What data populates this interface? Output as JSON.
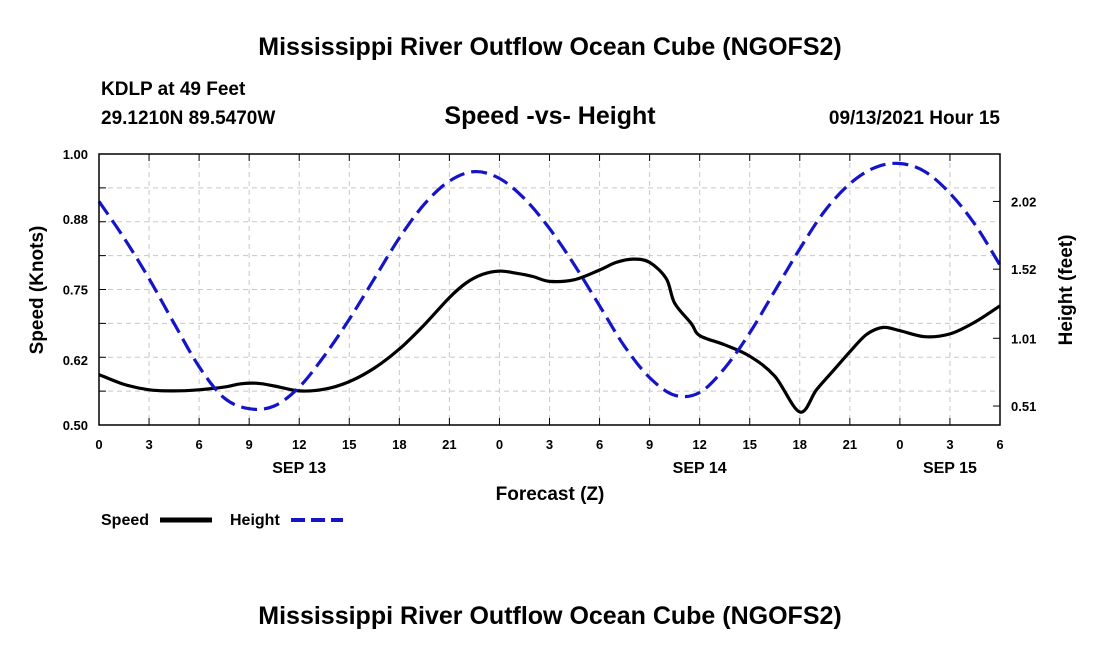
{
  "header": {
    "title": "Mississippi River Outflow Ocean Cube (NGOFS2)",
    "station": "KDLP at 49 Feet",
    "coords": "29.1210N  89.5470W",
    "timestamp": "09/13/2021 Hour 15"
  },
  "footer": {
    "title": "Mississippi River Outflow Ocean Cube (NGOFS2)"
  },
  "legend": {
    "speed_label": "Speed",
    "height_label": "Height"
  },
  "chart_data": {
    "type": "line",
    "title": "Speed -vs- Height",
    "xlabel": "Forecast (Z)",
    "ylabel": "Speed (Knots)",
    "y2label": "Height (feet)",
    "xlim": [
      0,
      54
    ],
    "ylim": [
      0.5,
      1.0
    ],
    "y2lim": [
      0.37,
      2.37
    ],
    "x_ticks": [
      0,
      3,
      6,
      9,
      12,
      15,
      18,
      21,
      24,
      27,
      30,
      33,
      36,
      39,
      42,
      45,
      48,
      51,
      54
    ],
    "x_tick_labels": [
      "0",
      "3",
      "6",
      "9",
      "12",
      "15",
      "18",
      "21",
      "0",
      "3",
      "6",
      "9",
      "12",
      "15",
      "18",
      "21",
      "0",
      "3",
      "6"
    ],
    "y_ticks": [
      0.5,
      0.62,
      0.75,
      0.88,
      1.0
    ],
    "y_tick_labels": [
      "0.50",
      "0.62",
      "0.75",
      "0.88",
      "1.00"
    ],
    "y2_ticks": [
      0.51,
      1.01,
      1.52,
      2.02
    ],
    "y2_tick_labels": [
      "0.51",
      "1.01",
      "1.52",
      "2.02"
    ],
    "date_labels": [
      {
        "x": 12,
        "label": "SEP 13"
      },
      {
        "x": 36,
        "label": "SEP 14"
      },
      {
        "x": 51,
        "label": "SEP 15"
      }
    ],
    "series": [
      {
        "name": "Speed",
        "axis": "left",
        "color": "#000000",
        "dash": "solid",
        "x": [
          0,
          1.5,
          3,
          4.5,
          6,
          7.5,
          8.5,
          9.5,
          10.5,
          12,
          13.5,
          15,
          16.5,
          18,
          19.5,
          21,
          22,
          23,
          24,
          25,
          26,
          27,
          28.5,
          30,
          31,
          32,
          33,
          34,
          34.5,
          35.5,
          36,
          37.5,
          39,
          40.5,
          42,
          43,
          44,
          45,
          46,
          47,
          48,
          49.5,
          51,
          52.5,
          54
        ],
        "y": [
          0.593,
          0.575,
          0.565,
          0.563,
          0.565,
          0.57,
          0.576,
          0.577,
          0.572,
          0.563,
          0.566,
          0.58,
          0.605,
          0.64,
          0.685,
          0.735,
          0.762,
          0.778,
          0.784,
          0.78,
          0.774,
          0.765,
          0.768,
          0.786,
          0.8,
          0.806,
          0.8,
          0.77,
          0.725,
          0.687,
          0.665,
          0.648,
          0.627,
          0.59,
          0.524,
          0.565,
          0.6,
          0.635,
          0.667,
          0.68,
          0.674,
          0.663,
          0.668,
          0.69,
          0.72
        ]
      },
      {
        "name": "Height",
        "axis": "right",
        "color": "#1414c8",
        "dash": "dashed",
        "x": [
          0,
          1.5,
          3,
          4.5,
          6,
          7.5,
          9,
          10.5,
          12,
          13.5,
          15,
          16.5,
          18,
          19.5,
          21,
          22.5,
          24,
          25.5,
          27,
          28.5,
          30,
          31.5,
          33,
          34.5,
          36,
          37.5,
          39,
          40.5,
          42,
          43.5,
          45,
          46.5,
          48,
          49.5,
          51,
          52.5,
          54
        ],
        "y": [
          2.02,
          1.75,
          1.45,
          1.12,
          0.8,
          0.57,
          0.49,
          0.51,
          0.65,
          0.88,
          1.15,
          1.45,
          1.75,
          2.0,
          2.17,
          2.24,
          2.19,
          2.04,
          1.82,
          1.55,
          1.25,
          0.95,
          0.72,
          0.59,
          0.61,
          0.79,
          1.05,
          1.36,
          1.67,
          1.95,
          2.15,
          2.27,
          2.3,
          2.24,
          2.08,
          1.85,
          1.55
        ]
      }
    ]
  }
}
